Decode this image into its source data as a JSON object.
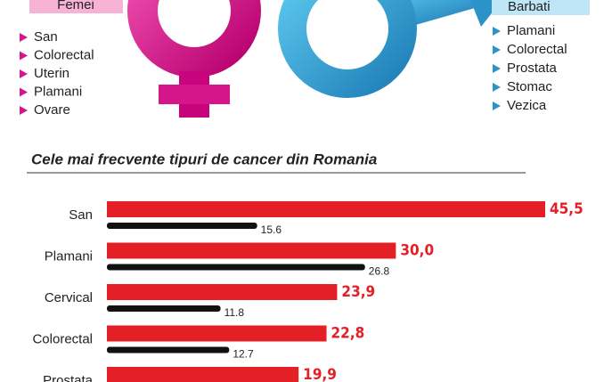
{
  "header": {
    "female_label": "Femei",
    "female_list": [
      "San",
      "Colorectal",
      "Uterin",
      "Plamani",
      "Ovare"
    ],
    "male_label": "Barbati",
    "male_list": [
      "Plamani",
      "Colorectal",
      "Prostata",
      "Stomac",
      "Vezica"
    ]
  },
  "chart_data": {
    "type": "bar",
    "orientation": "horizontal",
    "title": "Cele mai frecvente tipuri de cancer din Romania",
    "categories": [
      "San",
      "Plamani",
      "Cervical",
      "Colorectal",
      "Prostata"
    ],
    "series": [
      {
        "color": "#e41f26",
        "values": [
          45.5,
          30.0,
          23.9,
          22.8,
          19.9
        ],
        "value_labels": [
          "45,5",
          "30,0",
          "23,9",
          "22,8",
          "19,9"
        ]
      },
      {
        "color": "#111111",
        "values": [
          15.6,
          26.8,
          11.8,
          12.7,
          null
        ]
      }
    ]
  }
}
